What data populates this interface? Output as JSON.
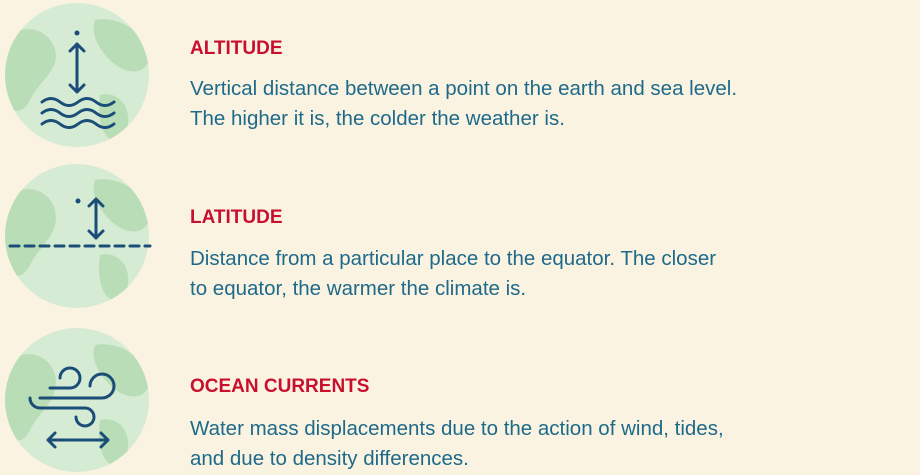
{
  "items": [
    {
      "title": "ALTITUDE",
      "description": [
        "Vertical distance between a point on the earth and sea level.",
        "The higher it is, the colder the weather is."
      ]
    },
    {
      "title": "LATITUDE",
      "description": [
        "Distance from a particular place to the equator. The closer",
        "to equator, the warmer the climate is."
      ]
    },
    {
      "title": "OCEAN CURRENTS",
      "description": [
        "Water mass displacements due to the action of wind, tides,",
        "and due to density differences."
      ]
    }
  ]
}
